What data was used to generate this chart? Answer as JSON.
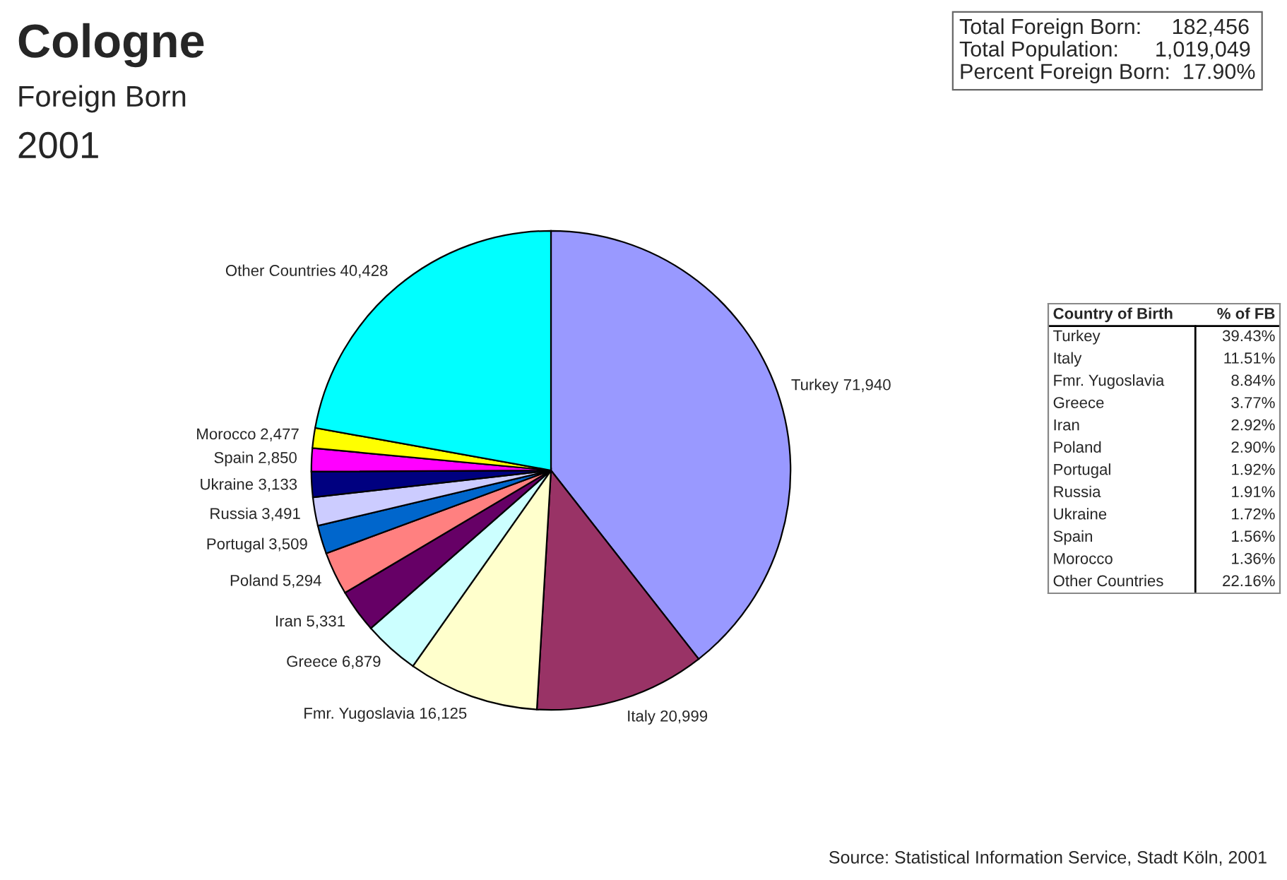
{
  "chart_data": [
    {
      "type": "pie",
      "title": "Cologne",
      "subtitle": "Foreign Born",
      "categories": [
        "Turkey",
        "Italy",
        "Fmr. Yugoslavia",
        "Greece",
        "Iran",
        "Poland",
        "Portugal",
        "Russia",
        "Ukraine",
        "Spain",
        "Morocco",
        "Other Countries"
      ],
      "values": [
        71940,
        20999,
        16125,
        6879,
        5331,
        5294,
        3509,
        3491,
        3133,
        2850,
        2477,
        40428
      ],
      "value_labels": [
        "71,940",
        "20,999",
        "16,125",
        "6,879",
        "5,331",
        "5,294",
        "3,509",
        "3,491",
        "3,133",
        "2,850",
        "2,477",
        "40,428"
      ],
      "colors": [
        "#9999ff",
        "#993366",
        "#ffffcc",
        "#ccffff",
        "#660066",
        "#ff8080",
        "#0066cc",
        "#ccccff",
        "#000080",
        "#ff00ff",
        "#ffff00",
        "#00ffff"
      ],
      "annotations": [
        "2001",
        "Source: Statistical Information Service, Stadt Köln, 2001"
      ]
    },
    {
      "type": "other",
      "annotations": [
        "Total Foreign Born:     182,456",
        "Total Population:      1,019,049",
        "Percent Foreign Born:  17.90%"
      ]
    },
    {
      "type": "other",
      "xlabel": "Country of Birth",
      "ylabel": "% of FB",
      "categories": [
        "Turkey",
        "Italy",
        "Fmr. Yugoslavia",
        "Greece",
        "Iran",
        "Poland",
        "Portugal",
        "Russia",
        "Ukraine",
        "Spain",
        "Morocco",
        "Other Countries"
      ],
      "value_labels": [
        "39.43%",
        "11.51%",
        "8.84%",
        "3.77%",
        "2.92%",
        "2.90%",
        "1.92%",
        "1.91%",
        "1.72%",
        "1.56%",
        "1.36%",
        "22.16%"
      ]
    }
  ]
}
